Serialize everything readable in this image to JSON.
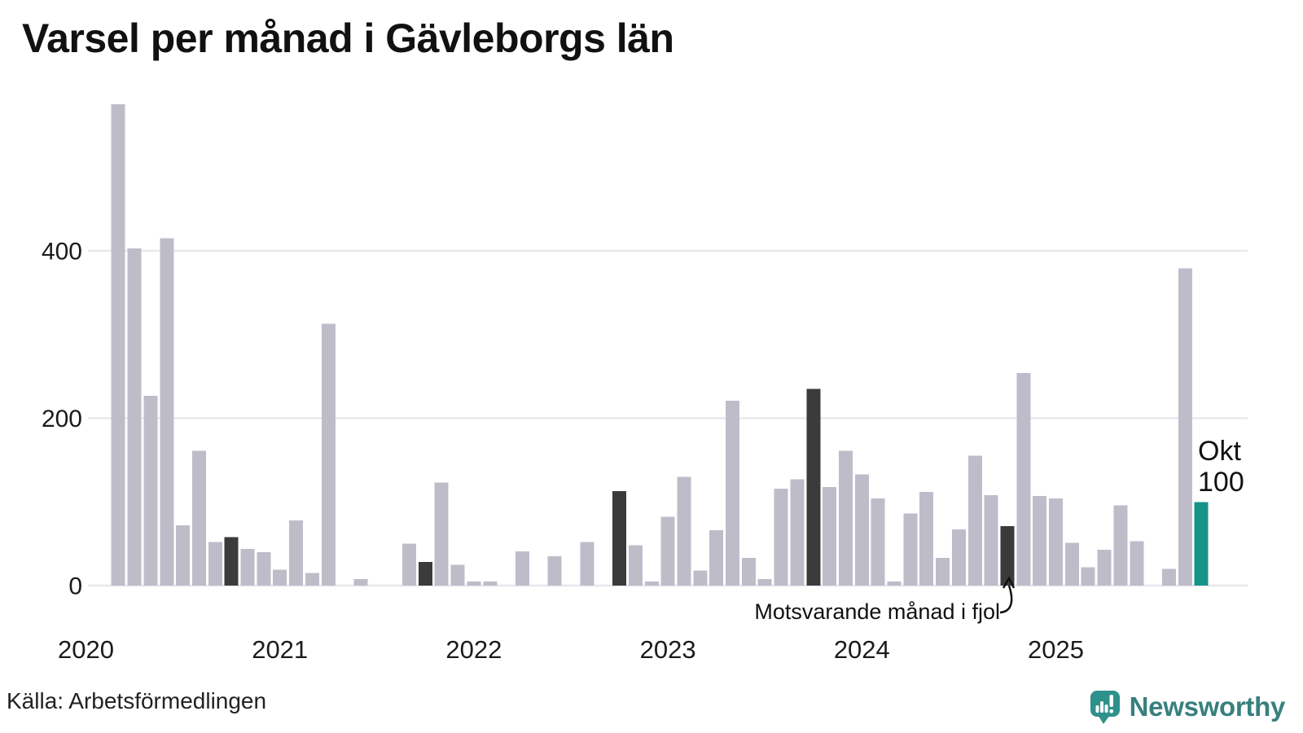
{
  "title": "Varsel per månad i Gävleborgs län",
  "source": "Källa: Arbetsförmedlingen",
  "branding": {
    "name": "Newsworthy"
  },
  "annotation": {
    "text": "Motsvarande månad i fjol"
  },
  "highlight": {
    "month_label": "Okt",
    "value_label": "100"
  },
  "chart_data": {
    "type": "bar",
    "title": "Varsel per månad i Gävleborgs län",
    "xlabel": "",
    "ylabel": "",
    "ylim": [
      0,
      580
    ],
    "yticks": [
      0,
      200,
      400
    ],
    "grid": "horizontal",
    "x_year_labels": [
      "2020",
      "2021",
      "2022",
      "2023",
      "2024",
      "2025"
    ],
    "colors": {
      "normal": "#bfbcca",
      "fjol": "#3b3b3b",
      "current": "#16948a",
      "gridline": "#e8e7ed",
      "text": "#1b1b1b"
    },
    "series": [
      {
        "month": "2020-01",
        "value": 0,
        "role": "normal"
      },
      {
        "month": "2020-02",
        "value": 0,
        "role": "normal"
      },
      {
        "month": "2020-03",
        "value": 575,
        "role": "normal"
      },
      {
        "month": "2020-04",
        "value": 403,
        "role": "normal"
      },
      {
        "month": "2020-05",
        "value": 227,
        "role": "normal"
      },
      {
        "month": "2020-06",
        "value": 415,
        "role": "normal"
      },
      {
        "month": "2020-07",
        "value": 72,
        "role": "normal"
      },
      {
        "month": "2020-08",
        "value": 161,
        "role": "normal"
      },
      {
        "month": "2020-09",
        "value": 52,
        "role": "normal"
      },
      {
        "month": "2020-10",
        "value": 58,
        "role": "fjol"
      },
      {
        "month": "2020-11",
        "value": 44,
        "role": "normal"
      },
      {
        "month": "2020-12",
        "value": 40,
        "role": "normal"
      },
      {
        "month": "2021-01",
        "value": 19,
        "role": "normal"
      },
      {
        "month": "2021-02",
        "value": 78,
        "role": "normal"
      },
      {
        "month": "2021-03",
        "value": 15,
        "role": "normal"
      },
      {
        "month": "2021-04",
        "value": 313,
        "role": "normal"
      },
      {
        "month": "2021-05",
        "value": 0,
        "role": "normal"
      },
      {
        "month": "2021-06",
        "value": 8,
        "role": "normal"
      },
      {
        "month": "2021-07",
        "value": 0,
        "role": "normal"
      },
      {
        "month": "2021-08",
        "value": 0,
        "role": "normal"
      },
      {
        "month": "2021-09",
        "value": 50,
        "role": "normal"
      },
      {
        "month": "2021-10",
        "value": 28,
        "role": "fjol"
      },
      {
        "month": "2021-11",
        "value": 123,
        "role": "normal"
      },
      {
        "month": "2021-12",
        "value": 25,
        "role": "normal"
      },
      {
        "month": "2022-01",
        "value": 5,
        "role": "normal"
      },
      {
        "month": "2022-02",
        "value": 5,
        "role": "normal"
      },
      {
        "month": "2022-03",
        "value": 0,
        "role": "normal"
      },
      {
        "month": "2022-04",
        "value": 41,
        "role": "normal"
      },
      {
        "month": "2022-05",
        "value": 0,
        "role": "normal"
      },
      {
        "month": "2022-06",
        "value": 35,
        "role": "normal"
      },
      {
        "month": "2022-07",
        "value": 0,
        "role": "normal"
      },
      {
        "month": "2022-08",
        "value": 52,
        "role": "normal"
      },
      {
        "month": "2022-09",
        "value": 0,
        "role": "normal"
      },
      {
        "month": "2022-10",
        "value": 113,
        "role": "fjol"
      },
      {
        "month": "2022-11",
        "value": 48,
        "role": "normal"
      },
      {
        "month": "2022-12",
        "value": 5,
        "role": "normal"
      },
      {
        "month": "2023-01",
        "value": 82,
        "role": "normal"
      },
      {
        "month": "2023-02",
        "value": 130,
        "role": "normal"
      },
      {
        "month": "2023-03",
        "value": 18,
        "role": "normal"
      },
      {
        "month": "2023-04",
        "value": 66,
        "role": "normal"
      },
      {
        "month": "2023-05",
        "value": 221,
        "role": "normal"
      },
      {
        "month": "2023-06",
        "value": 33,
        "role": "normal"
      },
      {
        "month": "2023-07",
        "value": 8,
        "role": "normal"
      },
      {
        "month": "2023-08",
        "value": 116,
        "role": "normal"
      },
      {
        "month": "2023-09",
        "value": 127,
        "role": "normal"
      },
      {
        "month": "2023-10",
        "value": 235,
        "role": "fjol"
      },
      {
        "month": "2023-11",
        "value": 118,
        "role": "normal"
      },
      {
        "month": "2023-12",
        "value": 161,
        "role": "normal"
      },
      {
        "month": "2024-01",
        "value": 133,
        "role": "normal"
      },
      {
        "month": "2024-02",
        "value": 104,
        "role": "normal"
      },
      {
        "month": "2024-03",
        "value": 5,
        "role": "normal"
      },
      {
        "month": "2024-04",
        "value": 86,
        "role": "normal"
      },
      {
        "month": "2024-05",
        "value": 112,
        "role": "normal"
      },
      {
        "month": "2024-06",
        "value": 33,
        "role": "normal"
      },
      {
        "month": "2024-07",
        "value": 67,
        "role": "normal"
      },
      {
        "month": "2024-08",
        "value": 155,
        "role": "normal"
      },
      {
        "month": "2024-09",
        "value": 108,
        "role": "normal"
      },
      {
        "month": "2024-10",
        "value": 71,
        "role": "fjol"
      },
      {
        "month": "2024-11",
        "value": 254,
        "role": "normal"
      },
      {
        "month": "2024-12",
        "value": 107,
        "role": "normal"
      },
      {
        "month": "2025-01",
        "value": 104,
        "role": "normal"
      },
      {
        "month": "2025-02",
        "value": 51,
        "role": "normal"
      },
      {
        "month": "2025-03",
        "value": 22,
        "role": "normal"
      },
      {
        "month": "2025-04",
        "value": 43,
        "role": "normal"
      },
      {
        "month": "2025-05",
        "value": 96,
        "role": "normal"
      },
      {
        "month": "2025-06",
        "value": 53,
        "role": "normal"
      },
      {
        "month": "2025-07",
        "value": 0,
        "role": "normal"
      },
      {
        "month": "2025-08",
        "value": 20,
        "role": "normal"
      },
      {
        "month": "2025-09",
        "value": 379,
        "role": "normal"
      },
      {
        "month": "2025-10",
        "value": 100,
        "role": "current"
      }
    ]
  }
}
